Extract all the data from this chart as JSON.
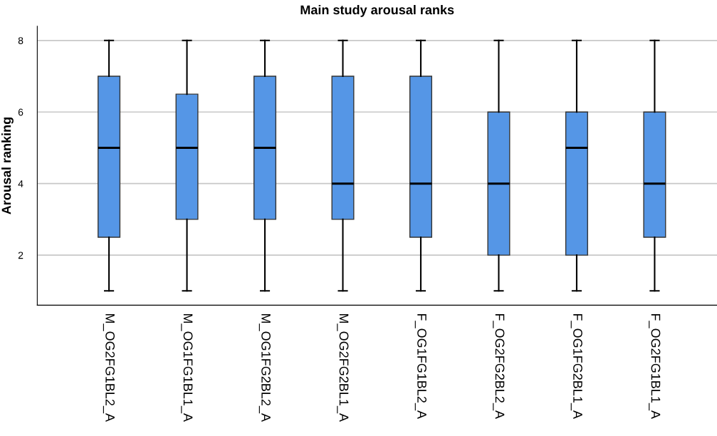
{
  "chart_data": {
    "type": "box",
    "title": "Main study arousal ranks",
    "ylabel": "Arousal ranking",
    "categories": [
      "M_OG2FG1BL2_A",
      "M_OG1FG1BL1_A",
      "M_OG1FG2BL2_A",
      "M_OG2FG2BL1_A",
      "F_OG1FG1BL2_A",
      "F_OG2FG2BL2_A",
      "F_OG1FG2BL1_A",
      "F_OG2FG1BL1_A"
    ],
    "boxes": [
      {
        "low": 1,
        "q1": 2.5,
        "median": 5,
        "q3": 7,
        "high": 8
      },
      {
        "low": 1,
        "q1": 3,
        "median": 5,
        "q3": 6.5,
        "high": 8
      },
      {
        "low": 1,
        "q1": 3,
        "median": 5,
        "q3": 7,
        "high": 8
      },
      {
        "low": 1,
        "q1": 3,
        "median": 4,
        "q3": 7,
        "high": 8
      },
      {
        "low": 1,
        "q1": 2.5,
        "median": 4,
        "q3": 7,
        "high": 8
      },
      {
        "low": 1,
        "q1": 2,
        "median": 4,
        "q3": 6,
        "high": 8
      },
      {
        "low": 1,
        "q1": 2,
        "median": 5,
        "q3": 6,
        "high": 8
      },
      {
        "low": 1,
        "q1": 2.5,
        "median": 4,
        "q3": 6,
        "high": 8
      }
    ],
    "color": "#5596e6",
    "ylim": [
      0.6,
      8.4
    ],
    "yticks": [
      2,
      4,
      6,
      8
    ],
    "grid": "y",
    "legend": false
  }
}
